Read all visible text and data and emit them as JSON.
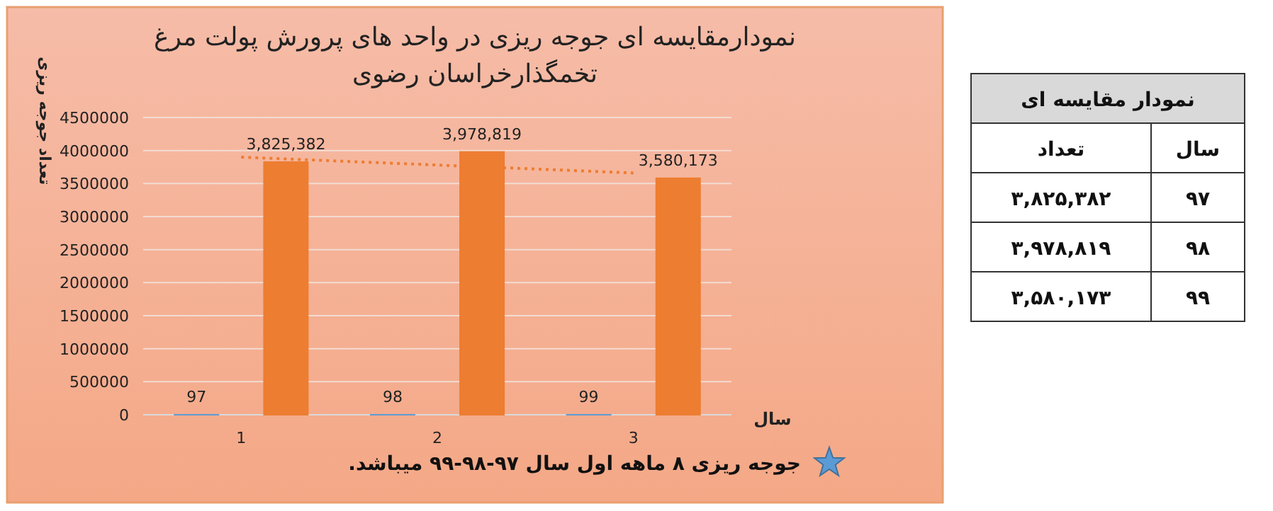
{
  "chart_data": [
    {
      "type": "bar",
      "title": "نمودارمقایسه ای جوجه ریزی در واحد های پرورش پولت مرغ تخمگذارخراسان رضوی",
      "ylabel": "تعداد جوجه ریزی",
      "xlabel": "سال",
      "categories": [
        "1",
        "2",
        "3"
      ],
      "series": [
        {
          "color": "#5b9bd5",
          "values": [
            97,
            98,
            99
          ],
          "value_labels": [
            "97",
            "98",
            "99"
          ]
        },
        {
          "color": "#ed7d31",
          "values": [
            3825382,
            3978819,
            3580173
          ],
          "value_labels": [
            "3,825,382",
            "3,978,819",
            "3,580,173"
          ]
        },
        {
          "type": "line",
          "x": [
            "1",
            "3"
          ],
          "values": [
            3900000,
            3660000
          ],
          "color": "#ed7d31",
          "line_style": "dotted"
        }
      ],
      "ylim": [
        0,
        4500000
      ],
      "yticks": [
        0,
        500000,
        1000000,
        1500000,
        2000000,
        2500000,
        3000000,
        3500000,
        4000000,
        4500000
      ],
      "grid": "y",
      "annotations": [
        "جوجه ریزی ۸ ماهه اول سال ۹۷-۹۸-۹۹ میباشد."
      ]
    },
    {
      "type": "other",
      "title": "نمودار مقایسه ای",
      "annotations": [
        "سال",
        "تعداد",
        "۹۷",
        "۳,۸۲۵,۳۸۲",
        "۹۸",
        "۳,۹۷۸,۸۱۹",
        "۹۹",
        "۳,۵۸۰,۱۷۳"
      ]
    }
  ]
}
